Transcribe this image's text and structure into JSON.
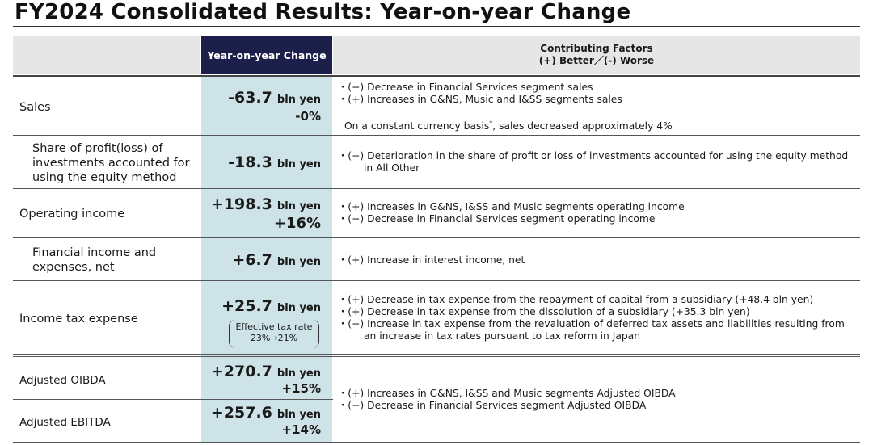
{
  "title": "FY2024 Consolidated Results: Year-on-year Change",
  "header": {
    "yoy": "Year-on-year Change",
    "factors_line1": "Contributing Factors",
    "factors_line2": "(+) Better／(-) Worse"
  },
  "rows": {
    "sales": {
      "label": "Sales",
      "value": "-63.7",
      "unit": "bln yen",
      "pct": "-0%",
      "factors": [
        "・(−) Decrease in Financial Services segment sales",
        "・(+) Increases in G&NS, Music and I&SS segments sales"
      ],
      "note_text": "On a constant currency basis",
      "note_sup": "*",
      "note_rest": ", sales decreased approximately 4%"
    },
    "equity": {
      "label_l1": "Share of profit(loss) of",
      "label_l2": "investments accounted for",
      "label_l3": "using the equity method",
      "value": "-18.3",
      "unit": "bln yen",
      "factors": [
        "・(−) Deterioration in the share of profit or loss of investments accounted for using the equity method",
        "in All Other"
      ]
    },
    "operating": {
      "label": "Operating income",
      "value": "+198.3",
      "unit": "bln yen",
      "pct": "+16%",
      "factors": [
        "・(+) Increases in G&NS, I&SS and Music segments operating income",
        "・(−) Decrease in Financial Services segment operating income"
      ]
    },
    "financial": {
      "label_l1": "Financial income and",
      "label_l2": "expenses, net",
      "value": "+6.7",
      "unit": "bln yen",
      "factors": [
        "・(+) Increase in interest income, net"
      ]
    },
    "tax": {
      "label": "Income tax expense",
      "value": "+25.7",
      "unit": "bln yen",
      "bracket_l1": "Effective tax rate",
      "bracket_l2": "23%→21%",
      "factors": [
        "・(+) Decrease in tax expense from the repayment of capital from a subsidiary (+48.4 bln yen)",
        "・(+) Decrease in tax expense from the dissolution of a subsidiary (+35.3 bln yen)",
        "・(−) Increase in tax expense from the revaluation of deferred tax assets and liabilities resulting from",
        "an increase in tax rates pursuant to tax reform in Japan"
      ]
    },
    "oibda": {
      "label": "Adjusted OIBDA",
      "value": "+270.7",
      "unit": "bln yen",
      "pct": "+15%"
    },
    "ebitda": {
      "label": "Adjusted EBITDA",
      "value": "+257.6",
      "unit": "bln yen",
      "pct": "+14%"
    },
    "oibda_ebitda_factors": [
      "・(+) Increases in G&NS, I&SS and Music segments Adjusted OIBDA",
      "・(−) Decrease in Financial Services segment Adjusted OIBDA"
    ]
  }
}
